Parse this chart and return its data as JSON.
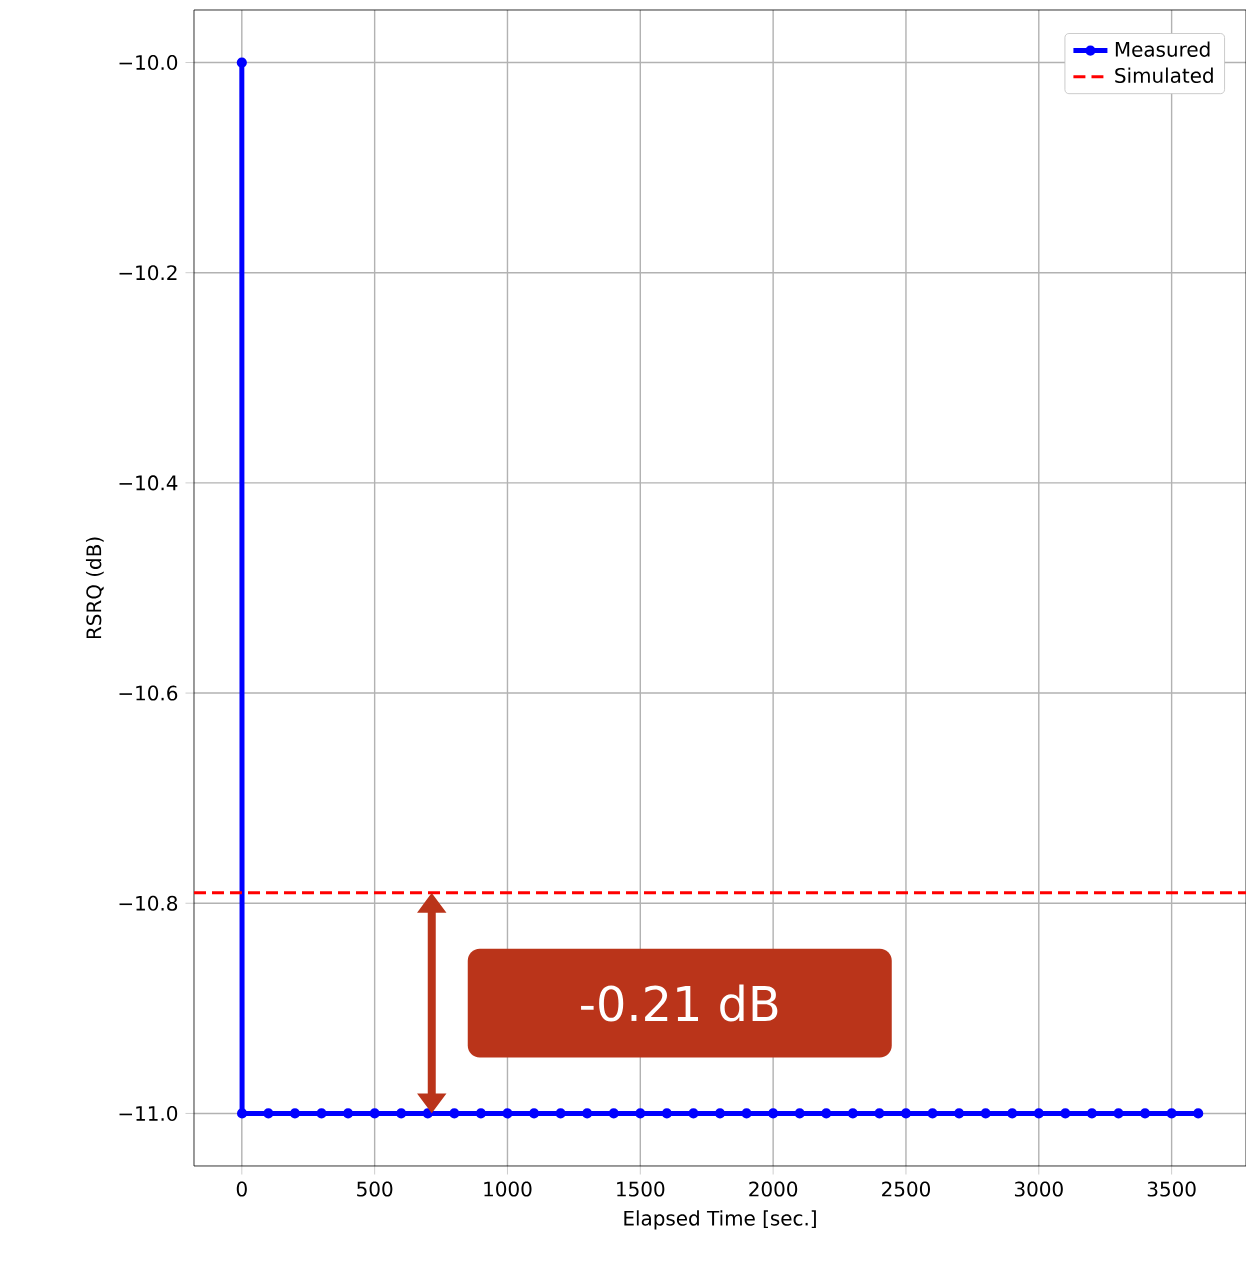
{
  "chart_data": {
    "type": "line",
    "xlabel": "Elapsed Time [sec.]",
    "ylabel": "RSRQ (dB)",
    "series": [
      {
        "name": "Measured",
        "color": "#0000ff",
        "x": [
          0,
          1,
          100,
          200,
          300,
          400,
          500,
          600,
          700,
          800,
          900,
          1000,
          1100,
          1200,
          1300,
          1400,
          1500,
          1600,
          1700,
          1800,
          1900,
          2000,
          2100,
          2200,
          2300,
          2400,
          2500,
          2600,
          2700,
          2800,
          2900,
          3000,
          3100,
          3200,
          3300,
          3400,
          3500,
          3600
        ],
        "values": [
          -10.0,
          -11.0,
          -11.0,
          -11.0,
          -11.0,
          -11.0,
          -11.0,
          -11.0,
          -11.0,
          -11.0,
          -11.0,
          -11.0,
          -11.0,
          -11.0,
          -11.0,
          -11.0,
          -11.0,
          -11.0,
          -11.0,
          -11.0,
          -11.0,
          -11.0,
          -11.0,
          -11.0,
          -11.0,
          -11.0,
          -11.0,
          -11.0,
          -11.0,
          -11.0,
          -11.0,
          -11.0,
          -11.0,
          -11.0,
          -11.0,
          -11.0,
          -11.0,
          -11.0
        ]
      }
    ],
    "ref_lines": [
      {
        "axis": "y",
        "value": -10.79,
        "label": "Simulated",
        "color": "#ff0000",
        "line_style": "dashed"
      }
    ],
    "annotations": [
      "-0.21 dB"
    ],
    "xlim": [
      -180,
      3780
    ],
    "ylim": [
      -11.05,
      -9.95
    ],
    "xticks": [
      0,
      500,
      1000,
      1500,
      2000,
      2500,
      3000,
      3500
    ],
    "yticks": [
      {
        "value": -11.0,
        "label": "−11.0"
      },
      {
        "value": -10.8,
        "label": "−10.8"
      },
      {
        "value": -10.6,
        "label": "−10.6"
      },
      {
        "value": -10.4,
        "label": "−10.4"
      },
      {
        "value": -10.2,
        "label": "−10.2"
      },
      {
        "value": -10.0,
        "label": "−10.0"
      }
    ],
    "grid": true,
    "legend": "top right",
    "marker": "circle",
    "line_style": "solid"
  }
}
